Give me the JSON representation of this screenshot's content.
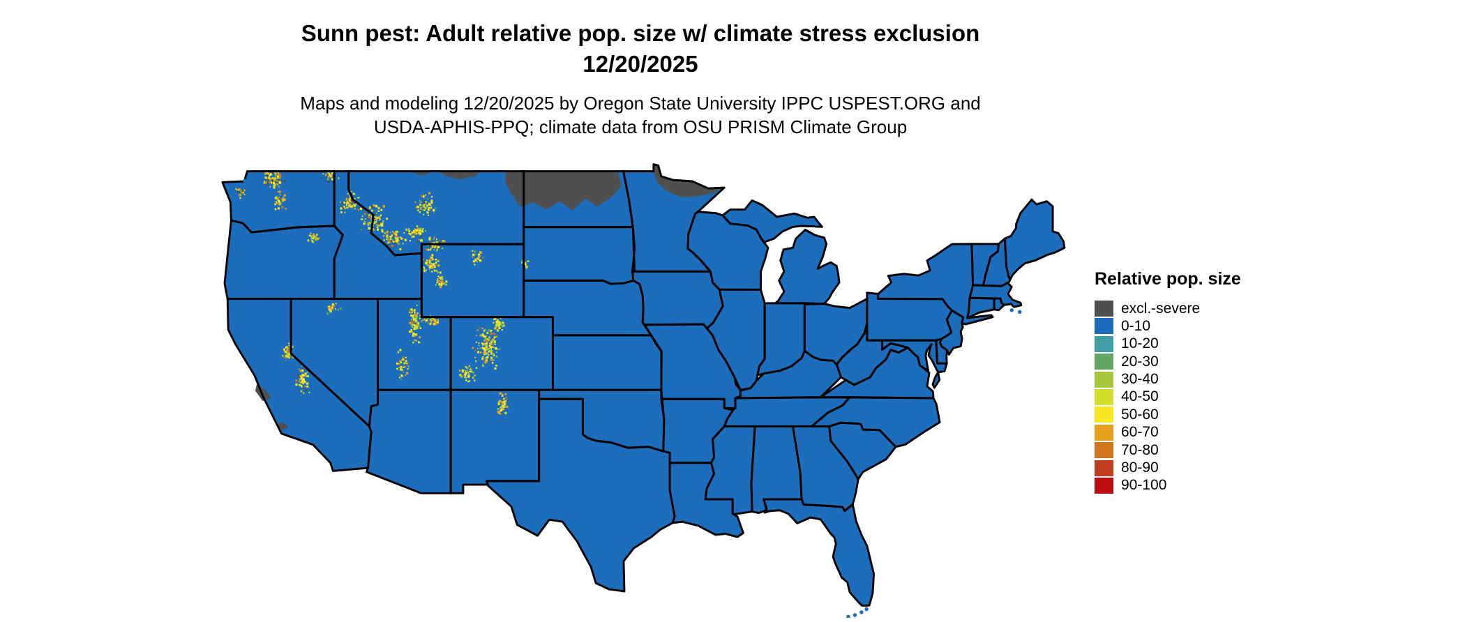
{
  "header": {
    "title_line1": "Sunn pest: Adult relative pop. size w/ climate stress exclusion",
    "title_line2": "12/20/2025",
    "subtitle_line1": "Maps and modeling 12/20/2025 by Oregon State University IPPC USPEST.ORG and",
    "subtitle_line2": "USDA-APHIS-PPQ; climate data from OSU PRISM Climate Group"
  },
  "legend": {
    "title": "Relative pop. size",
    "items": [
      {
        "label": "excl.-severe",
        "color": "#4f4f4f"
      },
      {
        "label": "0-10",
        "color": "#1c6dbb"
      },
      {
        "label": "10-20",
        "color": "#3f9ea6"
      },
      {
        "label": "20-30",
        "color": "#62a763"
      },
      {
        "label": "30-40",
        "color": "#a6c73c"
      },
      {
        "label": "40-50",
        "color": "#d4df2c"
      },
      {
        "label": "50-60",
        "color": "#f9e821"
      },
      {
        "label": "60-70",
        "color": "#e7a01e"
      },
      {
        "label": "70-80",
        "color": "#d0761c"
      },
      {
        "label": "80-90",
        "color": "#c03d1e"
      },
      {
        "label": "90-100",
        "color": "#ba0d10"
      }
    ]
  },
  "map": {
    "region": "Contiguous United States",
    "border_color": "#000000",
    "background_color": "#ffffff",
    "water_color": "#ffffff"
  },
  "chart_data": {
    "type": "choropleth",
    "title": "Sunn pest: Adult relative pop. size w/ climate stress exclusion 12/20/2025",
    "legend_title": "Relative pop. size",
    "categories": [
      "excl.-severe",
      "0-10",
      "10-20",
      "20-30",
      "30-40",
      "40-50",
      "50-60",
      "60-70",
      "70-80",
      "80-90",
      "90-100"
    ],
    "dominant_category": "0-10",
    "observations": [
      "Nearly all of the contiguous US is mapped in the 0-10 (blue) class",
      "excl.-severe (dark gray) climate-stress exclusion covers northern North Dakota, northern Minnesota along the Canadian border, thin patches along the northern Montana border, and small spots on the central California coast",
      "Scattered speckles of higher classes (30-80, yellow/orange) appear over mountain areas: WA Cascades, Olympics, northern Rockies of Idaho/Montana, Yellowstone region of Wyoming, Wasatch and southern Utah plateaus, Colorado Rockies, Sangre de Cristo of New Mexico, and the Sierra Nevada of California"
    ]
  }
}
